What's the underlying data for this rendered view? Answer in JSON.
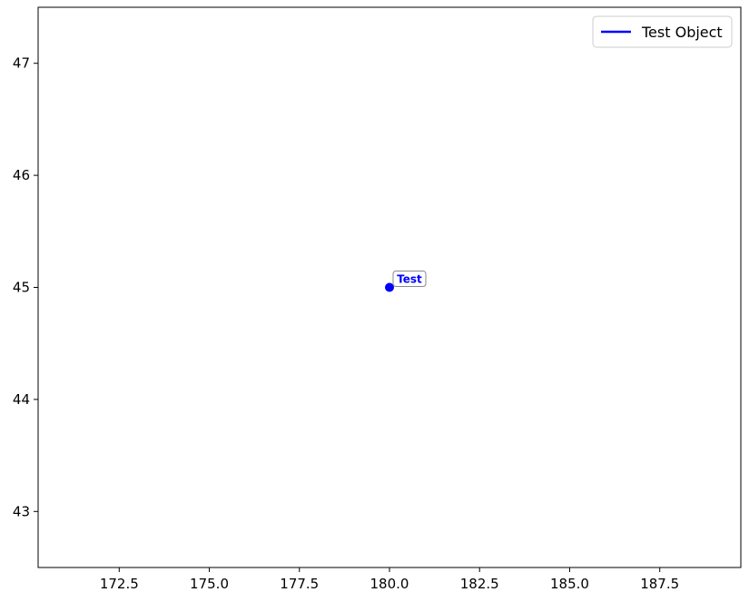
{
  "chart_data": {
    "type": "scatter",
    "title": "",
    "xlabel": "",
    "ylabel": "",
    "xlim": [
      170.25,
      189.75
    ],
    "ylim": [
      42.5,
      47.5
    ],
    "x_ticks": [
      172.5,
      175.0,
      177.5,
      180.0,
      182.5,
      185.0,
      187.5
    ],
    "x_tick_labels": [
      "172.5",
      "175.0",
      "177.5",
      "180.0",
      "182.5",
      "185.0",
      "187.5"
    ],
    "y_ticks": [
      43,
      44,
      45,
      46,
      47
    ],
    "y_tick_labels": [
      "43",
      "44",
      "45",
      "46",
      "47"
    ],
    "grid": false,
    "legend": {
      "position": "top-right",
      "entries": [
        {
          "label": "Test Object",
          "color": "#0000ff",
          "marker": "line"
        }
      ]
    },
    "series": [
      {
        "name": "Test Object",
        "color": "#0000ff",
        "points": [
          {
            "x": 180.0,
            "y": 45.0
          }
        ]
      }
    ],
    "annotations": [
      {
        "text": "Test",
        "x": 180.0,
        "y": 45.0,
        "color": "#0000ff"
      }
    ]
  }
}
